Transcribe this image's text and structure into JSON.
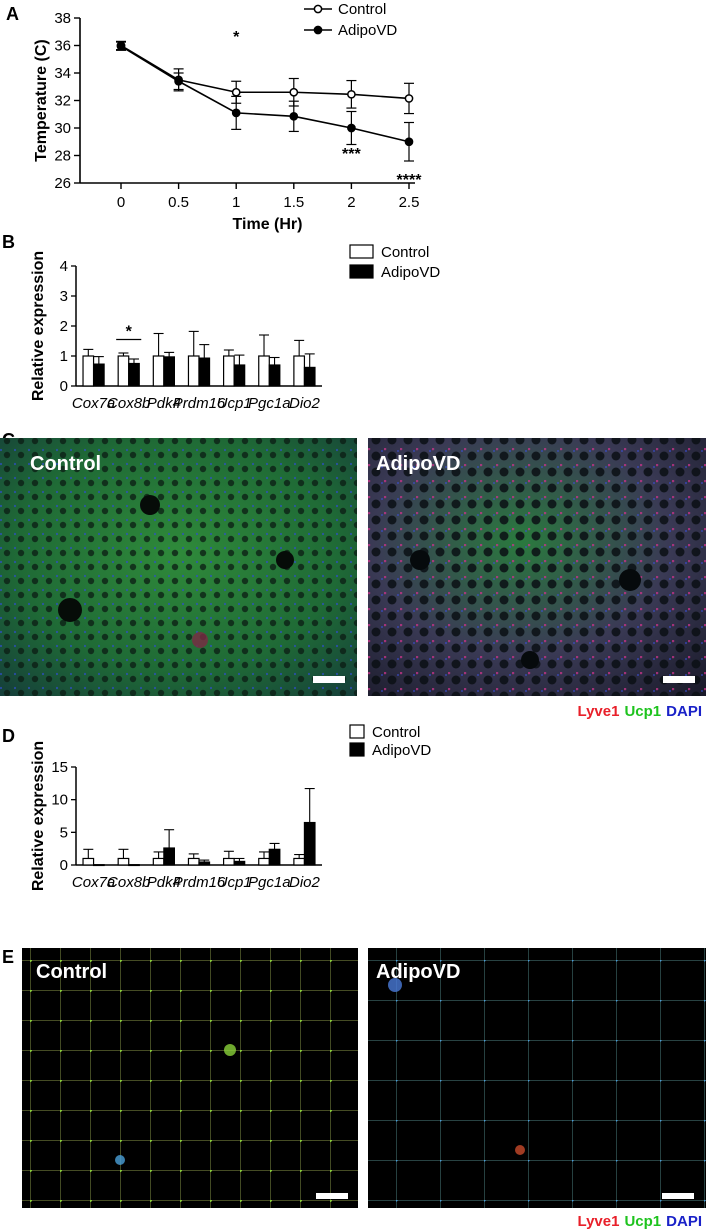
{
  "panels": {
    "A": "A",
    "B": "B",
    "C": "C",
    "D": "D",
    "E": "E"
  },
  "colors": {
    "control_bar": "#ffffff",
    "adipovd_bar": "#000000",
    "lyve1": "#e8202a",
    "ucp1": "#1ec31e",
    "dapi": "#1a22c8",
    "scale_bar": "#ffffff"
  },
  "chart_data": [
    {
      "id": "A",
      "type": "line",
      "xlabel": "Time (Hr)",
      "ylabel": "Temperature (C)",
      "x": [
        0,
        0.5,
        1,
        1.5,
        2,
        2.5
      ],
      "xtick_labels": [
        "0",
        "0.5",
        "1",
        "1.5",
        "2",
        "2.5"
      ],
      "ylim": [
        26,
        38
      ],
      "yticks": [
        26,
        28,
        30,
        32,
        34,
        36,
        38
      ],
      "ytick_labels": [
        "26",
        "28",
        "30",
        "32",
        "34",
        "36",
        "38"
      ],
      "legend": [
        "Control",
        "AdipoVD"
      ],
      "series": [
        {
          "name": "Control",
          "marker": "open-circle",
          "values": [
            36.0,
            33.5,
            32.6,
            32.6,
            32.45,
            32.15
          ],
          "errors": [
            0.3,
            0.8,
            0.8,
            1.0,
            1.0,
            1.1
          ]
        },
        {
          "name": "AdipoVD",
          "marker": "filled-circle",
          "values": [
            35.95,
            33.4,
            31.1,
            30.85,
            30.0,
            29.0
          ],
          "errors": [
            0.3,
            0.6,
            1.2,
            1.1,
            1.2,
            1.4
          ]
        }
      ],
      "annotations": [
        {
          "x": 1,
          "y": 36.7,
          "text": "*"
        },
        {
          "x": 1.5,
          "y": 30.7,
          "text": "*"
        },
        {
          "x": 2,
          "y": 28.2,
          "text": "***"
        },
        {
          "x": 2.5,
          "y": 26.3,
          "text": "****"
        }
      ]
    },
    {
      "id": "B",
      "type": "bar",
      "ylabel": "Relative expression",
      "categories": [
        "Cox7a",
        "Cox8b",
        "Pdk4",
        "Prdm16",
        "Ucp1",
        "Pgc1a",
        "Dio2"
      ],
      "ylim": [
        0,
        4
      ],
      "yticks": [
        0,
        1,
        2,
        3,
        4
      ],
      "ytick_labels": [
        "0",
        "1",
        "2",
        "3",
        "4"
      ],
      "legend": [
        "Control",
        "AdipoVD"
      ],
      "series": [
        {
          "name": "Control",
          "values": [
            1.0,
            1.0,
            1.0,
            1.0,
            1.0,
            1.0,
            1.0
          ],
          "errors": [
            0.22,
            0.1,
            0.75,
            0.82,
            0.2,
            0.7,
            0.52
          ]
        },
        {
          "name": "AdipoVD",
          "values": [
            0.73,
            0.75,
            0.97,
            0.93,
            0.7,
            0.7,
            0.62
          ],
          "errors": [
            0.25,
            0.15,
            0.15,
            0.45,
            0.33,
            0.25,
            0.45
          ]
        }
      ],
      "significance": [
        {
          "category": "Cox8b",
          "text": "*"
        }
      ]
    },
    {
      "id": "D",
      "type": "bar",
      "ylabel": "Relative expression",
      "categories": [
        "Cox7a",
        "Cox8b",
        "Pdk4",
        "Prdm16",
        "Ucp1",
        "Pgc1a",
        "Dio2"
      ],
      "ylim": [
        0,
        15
      ],
      "yticks": [
        0,
        5,
        10,
        15
      ],
      "ytick_labels": [
        "0",
        "5",
        "10",
        "15"
      ],
      "legend": [
        "Control",
        "AdipoVD"
      ],
      "series": [
        {
          "name": "Control",
          "values": [
            1.0,
            1.0,
            1.0,
            1.0,
            1.0,
            1.0,
            1.0
          ],
          "errors": [
            1.4,
            1.4,
            1.0,
            0.7,
            1.1,
            1.0,
            0.6
          ]
        },
        {
          "name": "AdipoVD",
          "values": [
            0.05,
            0.05,
            2.6,
            0.45,
            0.55,
            2.4,
            6.5
          ],
          "errors": [
            0.0,
            0.0,
            2.8,
            0.3,
            0.45,
            0.9,
            5.2
          ]
        }
      ]
    }
  ],
  "micrographs": {
    "C": {
      "left_label": "Control",
      "right_label": "AdipoVD"
    },
    "E": {
      "left_label": "Control",
      "right_label": "AdipoVD"
    }
  },
  "stain_legend": {
    "lyve1": "Lyve1",
    "ucp1": "Ucp1",
    "dapi": "DAPI"
  }
}
